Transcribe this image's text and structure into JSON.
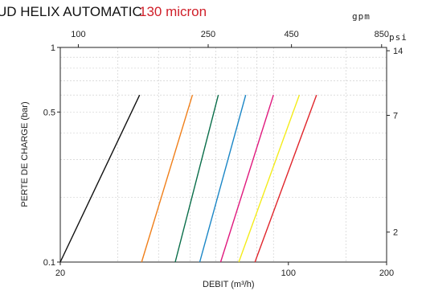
{
  "chart_data": {
    "type": "line",
    "title": "UD HELIX AUTOMATIC",
    "subtitle": "130 micron",
    "xlabel": "DEBIT (m³/h)",
    "ylabel": "PERTE DE CHARGE  (bar)",
    "xscale": "log",
    "yscale": "log",
    "xlim": [
      20,
      200
    ],
    "ylim": [
      0.1,
      1
    ],
    "grid": true,
    "x_ticks": [
      "20",
      "100",
      "200"
    ],
    "y_ticks": [
      "0.1",
      "0.5",
      "1"
    ],
    "top_axis": {
      "unit": "gpm",
      "ticks": [
        "100",
        "250",
        "450",
        "850"
      ]
    },
    "right_axis": {
      "unit": "psi",
      "ticks": [
        "2",
        "7",
        "14"
      ]
    },
    "colors": {
      "title_accent": "#d0202a",
      "series": [
        "#111111",
        "#f07f1a",
        "#0a6e4a",
        "#1a86c6",
        "#e0197d",
        "#f4ec1a",
        "#e0262c"
      ]
    },
    "series": [
      {
        "x": [
          20,
          35
        ],
        "y": [
          0.1,
          0.6
        ]
      },
      {
        "x": [
          35.5,
          50.8
        ],
        "y": [
          0.1,
          0.6
        ]
      },
      {
        "x": [
          45,
          61
        ],
        "y": [
          0.1,
          0.6
        ]
      },
      {
        "x": [
          53.5,
          74
        ],
        "y": [
          0.1,
          0.6
        ]
      },
      {
        "x": [
          62,
          90
        ],
        "y": [
          0.1,
          0.6
        ]
      },
      {
        "x": [
          70.5,
          108
        ],
        "y": [
          0.1,
          0.6
        ]
      },
      {
        "x": [
          79,
          122
        ],
        "y": [
          0.1,
          0.6
        ]
      }
    ]
  }
}
